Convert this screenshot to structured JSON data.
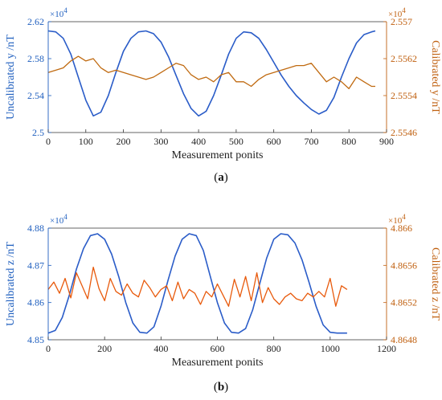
{
  "chart_data": [
    {
      "type": "line",
      "caption_letter": "a",
      "xlabel": "Measurement ponits",
      "xlim": [
        0,
        900
      ],
      "xticks": [
        "0",
        "100",
        "200",
        "300",
        "400",
        "500",
        "600",
        "700",
        "800",
        "900"
      ],
      "left_axis": {
        "label": "Uncalibrated y /nT",
        "multiplier": "×10",
        "multiplier_exp": "4",
        "ylim": [
          25000,
          26200
        ],
        "ticks": [
          "2.5",
          "2.54",
          "2.58",
          "2.62"
        ],
        "color": "#1f5fbf"
      },
      "right_axis": {
        "label": "Calibrated y /nT",
        "multiplier": "×10",
        "multiplier_exp": "4",
        "ylim": [
          25546,
          25570
        ],
        "ticks": [
          "2.5546",
          "2.5554",
          "2.5562",
          "2.557"
        ],
        "color": "#c06010"
      },
      "series": [
        {
          "axis": "left",
          "color": "#2a5cc8",
          "x": [
            0,
            20,
            40,
            60,
            80,
            100,
            120,
            140,
            160,
            180,
            200,
            220,
            240,
            260,
            280,
            300,
            320,
            340,
            360,
            380,
            400,
            420,
            440,
            460,
            480,
            500,
            520,
            540,
            560,
            580,
            600,
            620,
            640,
            660,
            680,
            700,
            720,
            740,
            760,
            780,
            800,
            820,
            840,
            860,
            870
          ],
          "y": [
            26100,
            26090,
            26020,
            25850,
            25600,
            25350,
            25180,
            25220,
            25400,
            25650,
            25880,
            26020,
            26090,
            26100,
            26070,
            25980,
            25820,
            25620,
            25420,
            25260,
            25180,
            25230,
            25400,
            25620,
            25850,
            26020,
            26090,
            26080,
            26020,
            25900,
            25760,
            25620,
            25500,
            25400,
            25320,
            25250,
            25200,
            25240,
            25380,
            25600,
            25800,
            25970,
            26060,
            26090,
            26100
          ]
        },
        {
          "axis": "right",
          "color": "#c06a10",
          "x": [
            0,
            20,
            40,
            60,
            80,
            100,
            120,
            140,
            160,
            180,
            200,
            220,
            240,
            260,
            280,
            300,
            320,
            340,
            360,
            380,
            400,
            420,
            440,
            460,
            480,
            500,
            520,
            540,
            560,
            580,
            600,
            620,
            640,
            660,
            680,
            700,
            720,
            740,
            760,
            780,
            800,
            820,
            840,
            860,
            870
          ],
          "y": [
            25559,
            25559.5,
            25560,
            25561.5,
            25562.5,
            25561.5,
            25562,
            25560,
            25559,
            25559.5,
            25559,
            25558.5,
            25558,
            25557.5,
            25558,
            25559,
            25560,
            25561,
            25560.5,
            25558.5,
            25557.5,
            25558,
            25557,
            25558.5,
            25559,
            25557,
            25557,
            25556,
            25557.5,
            25558.5,
            25559,
            25559.5,
            25560,
            25560.5,
            25560.5,
            25561,
            25559,
            25557,
            25558,
            25557,
            25555.5,
            25558,
            25557,
            25556,
            25556
          ]
        }
      ]
    },
    {
      "type": "line",
      "caption_letter": "b",
      "xlabel": "Measurement ponits",
      "xlim": [
        0,
        1200
      ],
      "xticks": [
        "0",
        "200",
        "400",
        "600",
        "800",
        "1000",
        "1200"
      ],
      "left_axis": {
        "label": "Uncalibrated z /nT",
        "multiplier": "×10",
        "multiplier_exp": "4",
        "ylim": [
          48500,
          48800
        ],
        "ticks": [
          "4.85",
          "4.86",
          "4.87",
          "4.88"
        ],
        "color": "#1f5fbf"
      },
      "right_axis": {
        "label": "Calibrated z /nT",
        "multiplier": "×10",
        "multiplier_exp": "4",
        "ylim": [
          48648,
          48660
        ],
        "ticks": [
          "4.8648",
          "4.8652",
          "4.8656",
          "4.866"
        ],
        "color": "#c06010"
      },
      "series": [
        {
          "axis": "left",
          "color": "#2a5cc8",
          "x": [
            0,
            25,
            50,
            75,
            100,
            125,
            150,
            175,
            200,
            225,
            250,
            275,
            300,
            325,
            350,
            375,
            400,
            425,
            450,
            475,
            500,
            525,
            550,
            575,
            600,
            625,
            650,
            675,
            700,
            725,
            750,
            775,
            800,
            825,
            850,
            875,
            900,
            925,
            950,
            975,
            1000,
            1025,
            1060
          ],
          "y": [
            48518,
            48525,
            48560,
            48620,
            48690,
            48745,
            48780,
            48785,
            48770,
            48730,
            48670,
            48600,
            48545,
            48520,
            48518,
            48535,
            48590,
            48660,
            48725,
            48770,
            48785,
            48780,
            48740,
            48670,
            48600,
            48545,
            48520,
            48518,
            48530,
            48580,
            48650,
            48720,
            48770,
            48785,
            48782,
            48760,
            48715,
            48655,
            48590,
            48540,
            48520,
            48518,
            48518
          ]
        },
        {
          "axis": "right",
          "color": "#e85a0c",
          "x": [
            0,
            20,
            40,
            60,
            80,
            100,
            120,
            140,
            160,
            180,
            200,
            220,
            240,
            260,
            280,
            300,
            320,
            340,
            360,
            380,
            400,
            420,
            440,
            460,
            480,
            500,
            520,
            540,
            560,
            580,
            600,
            620,
            640,
            660,
            680,
            700,
            720,
            740,
            760,
            780,
            800,
            820,
            840,
            860,
            880,
            900,
            920,
            940,
            960,
            980,
            1000,
            1020,
            1040,
            1060
          ],
          "y": [
            48653.4,
            48654.2,
            48653,
            48654.6,
            48652.5,
            48655.2,
            48653.8,
            48652.4,
            48655.8,
            48653.5,
            48652.2,
            48654.6,
            48653.2,
            48652.8,
            48654,
            48653,
            48652.6,
            48654.4,
            48653.6,
            48652.6,
            48653.4,
            48653.8,
            48652.2,
            48654.2,
            48652.4,
            48653.4,
            48653,
            48651.8,
            48653.2,
            48652.6,
            48654,
            48652.8,
            48651.6,
            48654.5,
            48652.6,
            48654.8,
            48652.2,
            48655.2,
            48652,
            48653.6,
            48652.4,
            48651.8,
            48652.6,
            48653,
            48652.4,
            48652.2,
            48653,
            48652.6,
            48653.2,
            48652.6,
            48654.6,
            48651.6,
            48653.8,
            48653.4
          ]
        }
      ]
    }
  ]
}
